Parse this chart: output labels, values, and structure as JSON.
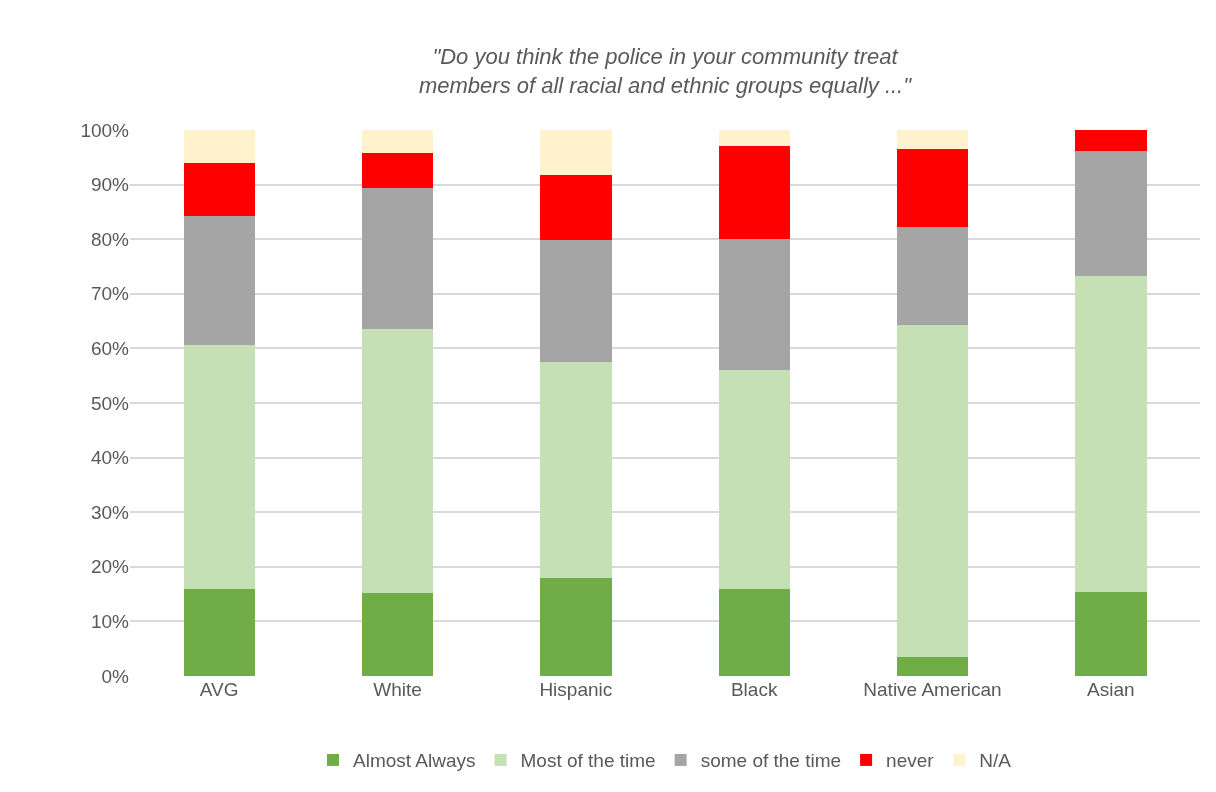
{
  "chart_data": {
    "type": "bar",
    "title": "\"Do you think the police in your community treat\nmembers of all racial and ethnic groups equally ...\"",
    "categories": [
      "AVG",
      "White",
      "Hispanic",
      "Black",
      "Native American",
      "Asian"
    ],
    "stacked": true,
    "series": [
      {
        "name": "Almost Always",
        "color": "#70ad47",
        "values": [
          15.9,
          15.2,
          17.9,
          15.9,
          3.5,
          15.3
        ]
      },
      {
        "name": "Most of the time",
        "color": "#c5e0b4",
        "values": [
          44.8,
          48.4,
          39.6,
          40.2,
          60.8,
          57.9
        ]
      },
      {
        "name": "some of the time",
        "color": "#a5a5a5",
        "values": [
          23.6,
          25.7,
          22.4,
          24.0,
          18.0,
          23.0
        ]
      },
      {
        "name": "never",
        "color": "#ff0000",
        "values": [
          9.7,
          6.5,
          11.9,
          16.9,
          14.2,
          3.8
        ]
      },
      {
        "name": "N/A",
        "color": "#fff2cc",
        "values": [
          6.0,
          4.2,
          8.2,
          3.0,
          3.5,
          null
        ]
      }
    ],
    "ylim": [
      0,
      100
    ],
    "yticks": [
      {
        "value": 0,
        "label": "0%"
      },
      {
        "value": 10,
        "label": "10%"
      },
      {
        "value": 20,
        "label": "20%"
      },
      {
        "value": 30,
        "label": "30%"
      },
      {
        "value": 40,
        "label": "40%"
      },
      {
        "value": 50,
        "label": "50%"
      },
      {
        "value": 60,
        "label": "60%"
      },
      {
        "value": 70,
        "label": "70%"
      },
      {
        "value": 80,
        "label": "80%"
      },
      {
        "value": 90,
        "label": "90%"
      },
      {
        "value": 100,
        "label": "100%"
      }
    ],
    "grid": "y",
    "legend": "bottom"
  }
}
